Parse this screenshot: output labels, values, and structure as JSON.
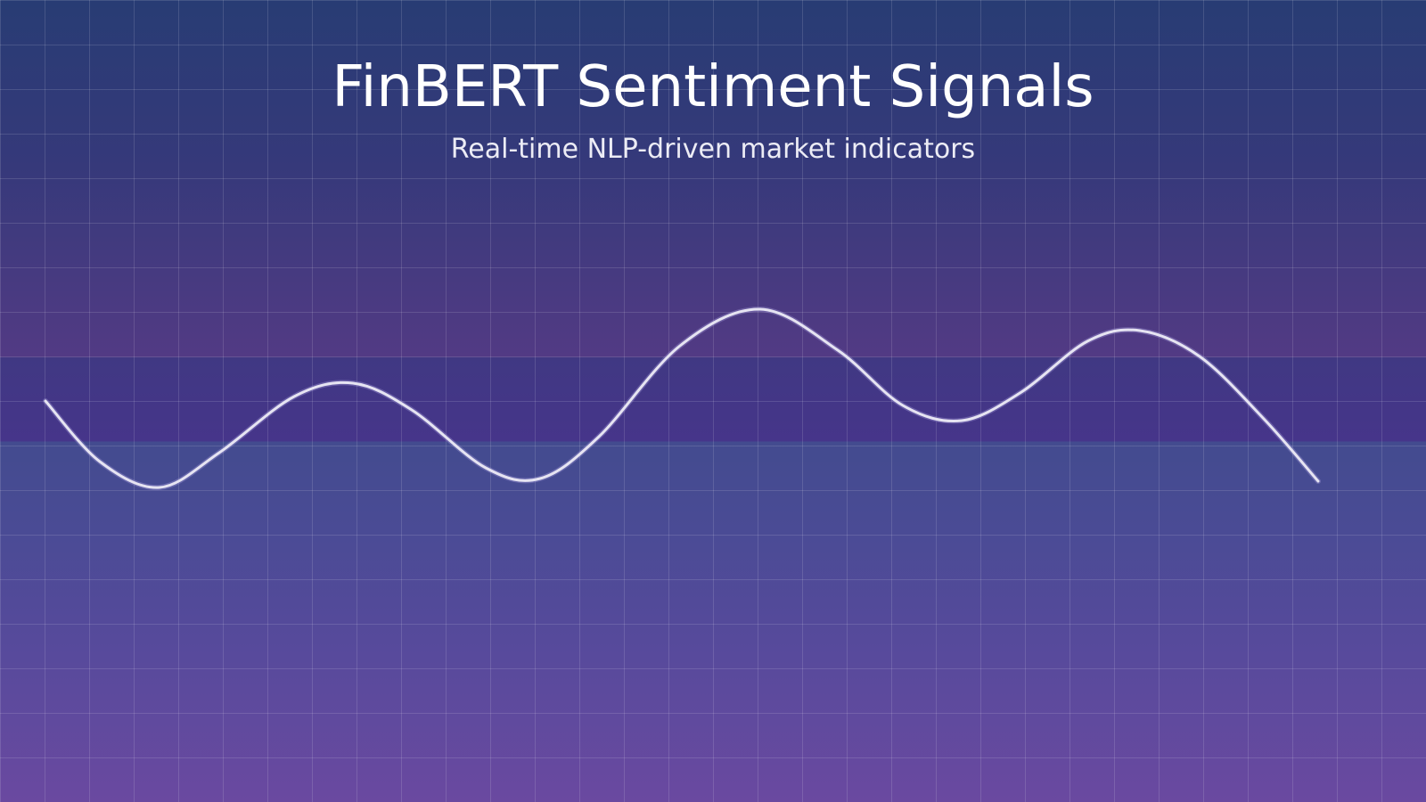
{
  "header": {
    "title": "FinBERT Sentiment Signals",
    "subtitle": "Real-time NLP-driven market indicators"
  },
  "signal_wave": {
    "icon": "sentiment-wave-line",
    "stroke_color": "#e6e4f2",
    "glow_color": "#a9a0e0"
  },
  "colors": {
    "top": "#283c74",
    "bottom": "#6a49a0",
    "text": "#ffffff"
  }
}
